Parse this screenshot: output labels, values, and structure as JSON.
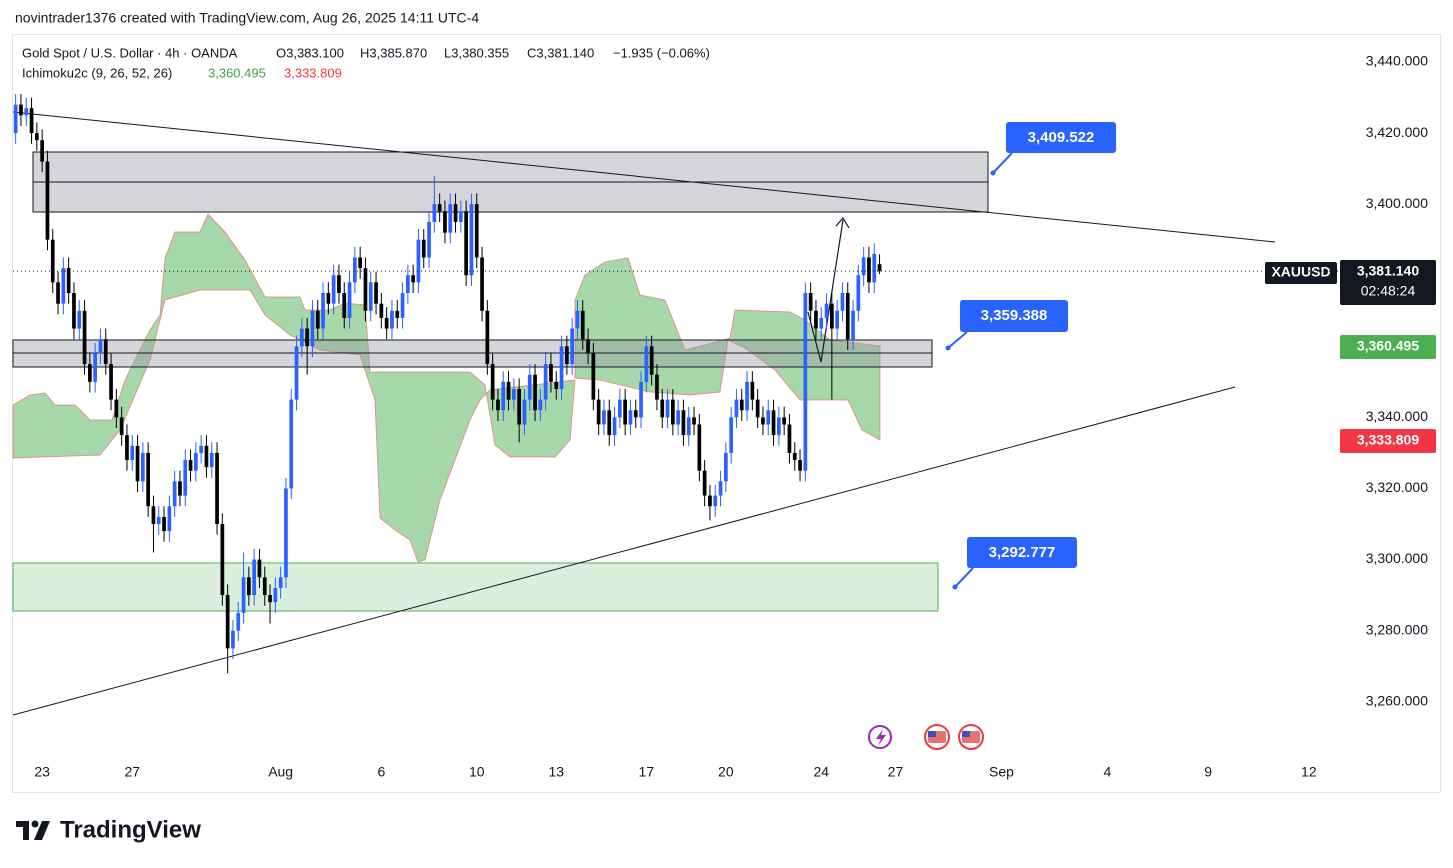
{
  "header": {
    "attribution": "novintrader1376 created with TradingView.com, Aug 26, 2025 14:11 UTC-4"
  },
  "chart_data": {
    "type": "candlestick",
    "title": "Gold Spot / U.S. Dollar · 4h · OANDA",
    "legend_values": [
      "O3,383.100",
      "H3,385.870",
      "L3,380.355",
      "C3,381.140",
      "−1.935 (−0.06%)"
    ],
    "indicator": {
      "name": "Ichimoku2c (9, 26, 52, 26)",
      "values": [
        "3,360.495",
        "3,333.809"
      ]
    },
    "up_color": "#2962ff",
    "down_color": "#000000",
    "grid": false,
    "ylim": [
      3245,
      3447.6
    ],
    "yticks": [
      {
        "value": 3440,
        "label": "3,440.000"
      },
      {
        "value": 3420,
        "label": "3,420.000"
      },
      {
        "value": 3400,
        "label": "3,400.000"
      },
      {
        "value": 3340,
        "label": "3,340.000"
      },
      {
        "value": 3320,
        "label": "3,320.000"
      },
      {
        "value": 3300,
        "label": "3,300.000"
      },
      {
        "value": 3280,
        "label": "3,280.000"
      },
      {
        "value": 3260,
        "label": "3,260.000"
      }
    ],
    "xlim": [
      -0.5,
      249.5
    ],
    "xticks": [
      {
        "value": 5,
        "label": "23"
      },
      {
        "value": 22,
        "label": "27"
      },
      {
        "value": 50,
        "label": "Aug"
      },
      {
        "value": 69,
        "label": "6"
      },
      {
        "value": 87,
        "label": "10"
      },
      {
        "value": 102,
        "label": "13"
      },
      {
        "value": 119,
        "label": "17"
      },
      {
        "value": 134,
        "label": "20"
      },
      {
        "value": 152,
        "label": "24"
      },
      {
        "value": 166,
        "label": "27"
      },
      {
        "value": 186,
        "label": "Sep"
      },
      {
        "value": 206,
        "label": "4"
      },
      {
        "value": 225,
        "label": "9"
      },
      {
        "value": 244,
        "label": "12"
      }
    ],
    "candles": [
      [
        3420,
        3431,
        3417,
        3428
      ],
      [
        3428,
        3431,
        3422,
        3425
      ],
      [
        3425,
        3430,
        3422,
        3427
      ],
      [
        3427,
        3430,
        3417,
        3420
      ],
      [
        3420,
        3423,
        3415,
        3418
      ],
      [
        3418,
        3421,
        3409,
        3412
      ],
      [
        3412,
        3415,
        3387,
        3390
      ],
      [
        3390,
        3393,
        3375,
        3378
      ],
      [
        3378,
        3381,
        3369,
        3372
      ],
      [
        3372,
        3385,
        3369,
        3382
      ],
      [
        3382,
        3385,
        3372,
        3375
      ],
      [
        3375,
        3378,
        3362,
        3365
      ],
      [
        3365,
        3373,
        3362,
        3370
      ],
      [
        3370,
        3373,
        3352,
        3355
      ],
      [
        3355,
        3358,
        3347,
        3350
      ],
      [
        3350,
        3361,
        3347,
        3358
      ],
      [
        3358,
        3365,
        3355,
        3362
      ],
      [
        3362,
        3365,
        3352,
        3355
      ],
      [
        3355,
        3358,
        3342,
        3345
      ],
      [
        3345,
        3348,
        3337,
        3340
      ],
      [
        3340,
        3343,
        3332,
        3335
      ],
      [
        3335,
        3338,
        3325,
        3328
      ],
      [
        3328,
        3335,
        3325,
        3332
      ],
      [
        3332,
        3335,
        3319,
        3322
      ],
      [
        3322,
        3333,
        3319,
        3330
      ],
      [
        3330,
        3333,
        3312,
        3315
      ],
      [
        3315,
        3318,
        3302,
        3310
      ],
      [
        3310,
        3315,
        3307,
        3312
      ],
      [
        3312,
        3315,
        3305,
        3308
      ],
      [
        3308,
        3318,
        3305,
        3315
      ],
      [
        3315,
        3325,
        3312,
        3322
      ],
      [
        3322,
        3325,
        3315,
        3318
      ],
      [
        3318,
        3331,
        3315,
        3328
      ],
      [
        3328,
        3331,
        3322,
        3325
      ],
      [
        3325,
        3333,
        3322,
        3330
      ],
      [
        3330,
        3335,
        3327,
        3332
      ],
      [
        3332,
        3335,
        3323,
        3326
      ],
      [
        3326,
        3333,
        3323,
        3330
      ],
      [
        3330,
        3333,
        3307,
        3310
      ],
      [
        3310,
        3313,
        3287,
        3290
      ],
      [
        3290,
        3293,
        3268,
        3275
      ],
      [
        3275,
        3283,
        3272,
        3280
      ],
      [
        3280,
        3288,
        3277,
        3285
      ],
      [
        3285,
        3302,
        3282,
        3295
      ],
      [
        3295,
        3298,
        3287,
        3290
      ],
      [
        3290,
        3303,
        3287,
        3300
      ],
      [
        3300,
        3303,
        3292,
        3295
      ],
      [
        3295,
        3298,
        3287,
        3290
      ],
      [
        3290,
        3293,
        3282,
        3288
      ],
      [
        3288,
        3295,
        3285,
        3292
      ],
      [
        3292,
        3298,
        3289,
        3295
      ],
      [
        3295,
        3323,
        3292,
        3320
      ],
      [
        3320,
        3348,
        3317,
        3345
      ],
      [
        3345,
        3363,
        3342,
        3360
      ],
      [
        3360,
        3368,
        3357,
        3365
      ],
      [
        3365,
        3368,
        3352,
        3360
      ],
      [
        3360,
        3373,
        3357,
        3370
      ],
      [
        3370,
        3373,
        3362,
        3365
      ],
      [
        3365,
        3378,
        3362,
        3375
      ],
      [
        3375,
        3378,
        3369,
        3372
      ],
      [
        3372,
        3383,
        3369,
        3380
      ],
      [
        3380,
        3383,
        3372,
        3375
      ],
      [
        3375,
        3378,
        3365,
        3368
      ],
      [
        3368,
        3381,
        3365,
        3378
      ],
      [
        3378,
        3388,
        3375,
        3385
      ],
      [
        3385,
        3388,
        3379,
        3382
      ],
      [
        3382,
        3385,
        3367,
        3370
      ],
      [
        3370,
        3381,
        3367,
        3378
      ],
      [
        3378,
        3381,
        3369,
        3372
      ],
      [
        3372,
        3375,
        3365,
        3368
      ],
      [
        3368,
        3371,
        3362,
        3365
      ],
      [
        3365,
        3373,
        3362,
        3370
      ],
      [
        3370,
        3373,
        3365,
        3368
      ],
      [
        3368,
        3378,
        3365,
        3375
      ],
      [
        3375,
        3383,
        3372,
        3380
      ],
      [
        3380,
        3383,
        3375,
        3378
      ],
      [
        3378,
        3393,
        3375,
        3390
      ],
      [
        3390,
        3393,
        3382,
        3385
      ],
      [
        3385,
        3398,
        3382,
        3395
      ],
      [
        3395,
        3408,
        3392,
        3400
      ],
      [
        3400,
        3403,
        3395,
        3398
      ],
      [
        3398,
        3401,
        3389,
        3392
      ],
      [
        3392,
        3403,
        3389,
        3400
      ],
      [
        3400,
        3403,
        3392,
        3395
      ],
      [
        3395,
        3401,
        3392,
        3398
      ],
      [
        3398,
        3401,
        3377,
        3380
      ],
      [
        3380,
        3403,
        3377,
        3400
      ],
      [
        3400,
        3403,
        3382,
        3385
      ],
      [
        3385,
        3388,
        3367,
        3370
      ],
      [
        3370,
        3373,
        3352,
        3355
      ],
      [
        3355,
        3358,
        3342,
        3345
      ],
      [
        3345,
        3348,
        3339,
        3342
      ],
      [
        3342,
        3353,
        3339,
        3350
      ],
      [
        3350,
        3353,
        3342,
        3345
      ],
      [
        3345,
        3351,
        3342,
        3348
      ],
      [
        3348,
        3351,
        3333,
        3338
      ],
      [
        3338,
        3348,
        3335,
        3345
      ],
      [
        3345,
        3355,
        3342,
        3352
      ],
      [
        3352,
        3355,
        3339,
        3342
      ],
      [
        3342,
        3348,
        3339,
        3345
      ],
      [
        3345,
        3358,
        3342,
        3355
      ],
      [
        3355,
        3358,
        3347,
        3350
      ],
      [
        3350,
        3353,
        3345,
        3348
      ],
      [
        3348,
        3363,
        3345,
        3360
      ],
      [
        3360,
        3363,
        3352,
        3355
      ],
      [
        3355,
        3368,
        3352,
        3365
      ],
      [
        3365,
        3373,
        3362,
        3370
      ],
      [
        3370,
        3373,
        3359,
        3362
      ],
      [
        3362,
        3365,
        3355,
        3358
      ],
      [
        3358,
        3361,
        3342,
        3345
      ],
      [
        3345,
        3348,
        3335,
        3338
      ],
      [
        3338,
        3345,
        3335,
        3342
      ],
      [
        3342,
        3345,
        3332,
        3335
      ],
      [
        3335,
        3343,
        3332,
        3340
      ],
      [
        3340,
        3348,
        3337,
        3345
      ],
      [
        3345,
        3348,
        3335,
        3338
      ],
      [
        3338,
        3345,
        3335,
        3342
      ],
      [
        3342,
        3345,
        3337,
        3340
      ],
      [
        3340,
        3353,
        3337,
        3350
      ],
      [
        3350,
        3363,
        3347,
        3360
      ],
      [
        3360,
        3363,
        3349,
        3352
      ],
      [
        3352,
        3355,
        3342,
        3345
      ],
      [
        3345,
        3348,
        3337,
        3340
      ],
      [
        3340,
        3348,
        3337,
        3345
      ],
      [
        3345,
        3348,
        3335,
        3338
      ],
      [
        3338,
        3345,
        3335,
        3342
      ],
      [
        3342,
        3345,
        3332,
        3335
      ],
      [
        3335,
        3343,
        3332,
        3340
      ],
      [
        3340,
        3343,
        3335,
        3338
      ],
      [
        3338,
        3341,
        3322,
        3325
      ],
      [
        3325,
        3328,
        3315,
        3318
      ],
      [
        3318,
        3321,
        3311,
        3315
      ],
      [
        3315,
        3321,
        3312,
        3318
      ],
      [
        3318,
        3325,
        3315,
        3322
      ],
      [
        3322,
        3333,
        3319,
        3330
      ],
      [
        3330,
        3343,
        3327,
        3340
      ],
      [
        3340,
        3348,
        3337,
        3345
      ],
      [
        3345,
        3348,
        3339,
        3342
      ],
      [
        3342,
        3353,
        3339,
        3350
      ],
      [
        3350,
        3353,
        3342,
        3345
      ],
      [
        3345,
        3348,
        3337,
        3340
      ],
      [
        3340,
        3343,
        3335,
        3338
      ],
      [
        3338,
        3345,
        3335,
        3342
      ],
      [
        3342,
        3345,
        3332,
        3335
      ],
      [
        3335,
        3343,
        3332,
        3340
      ],
      [
        3340,
        3343,
        3335,
        3338
      ],
      [
        3338,
        3341,
        3327,
        3330
      ],
      [
        3330,
        3333,
        3325,
        3328
      ],
      [
        3328,
        3331,
        3322,
        3325
      ],
      [
        3325,
        3378,
        3322,
        3375
      ],
      [
        3375,
        3378,
        3367,
        3370
      ],
      [
        3370,
        3373,
        3362,
        3365
      ],
      [
        3365,
        3371,
        3362,
        3368
      ],
      [
        3368,
        3375,
        3365,
        3372
      ],
      [
        3372,
        3375,
        3345,
        3365
      ],
      [
        3365,
        3373,
        3362,
        3370
      ],
      [
        3370,
        3378,
        3367,
        3375
      ],
      [
        3375,
        3378,
        3359,
        3362
      ],
      [
        3362,
        3373,
        3359,
        3370
      ],
      [
        3370,
        3383,
        3367,
        3380
      ],
      [
        3380,
        3388,
        3377,
        3385
      ],
      [
        3385,
        3388,
        3375,
        3378
      ],
      [
        3378,
        3389,
        3375,
        3386
      ],
      [
        3383.1,
        3385.87,
        3380.355,
        3381.14
      ]
    ],
    "annotations": [
      "3,409.522",
      "3,359.388",
      "3,292.777"
    ]
  },
  "price_tags": {
    "symbol": "XAUUSD",
    "last": "3,381.140",
    "countdown": "02:48:24",
    "cloud_a": "3,360.495",
    "cloud_b": "3,333.809"
  },
  "footer": {
    "brand": "TradingView"
  }
}
